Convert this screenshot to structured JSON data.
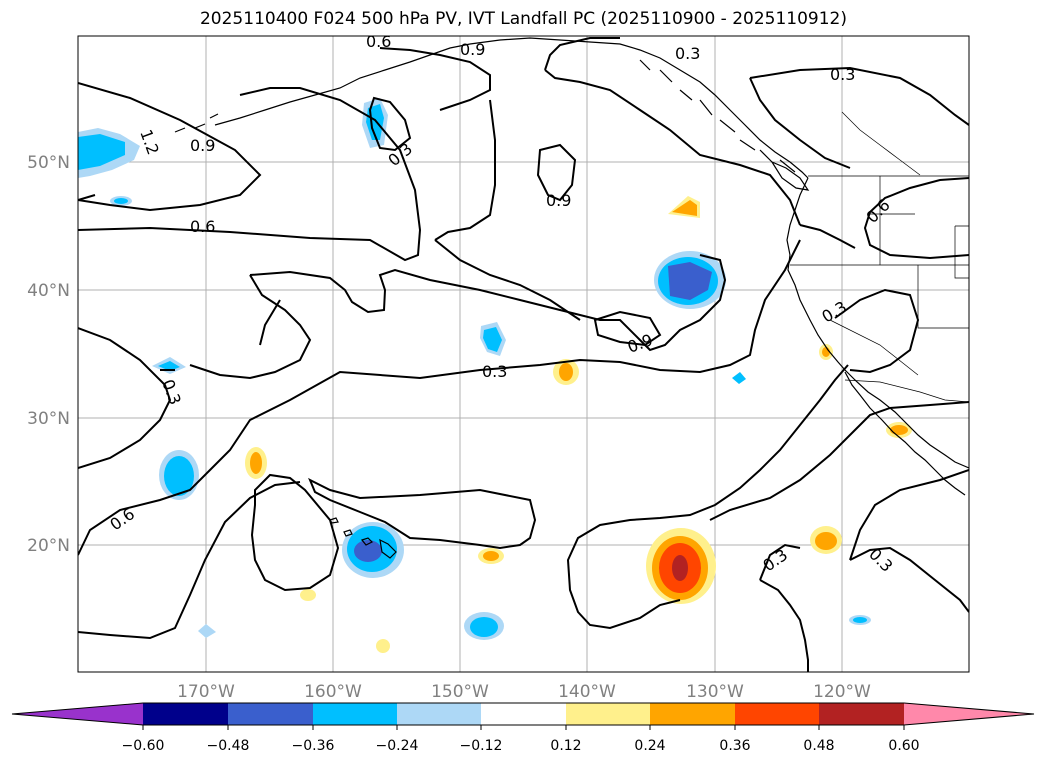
{
  "title": "2025110400 F024 500 hPa PV, IVT Landfall PC (2025110900 - 2025110912)",
  "axes": {
    "lat_labels": [
      "50°N",
      "40°N",
      "30°N",
      "20°N"
    ],
    "lon_labels": [
      "170°W",
      "160°W",
      "150°W",
      "140°W",
      "130°W",
      "120°W"
    ]
  },
  "contour_labels": [
    "0.6",
    "0.9",
    "0.3",
    "1.2",
    "0.9",
    "0.3",
    "0.9",
    "0.6",
    "0.6",
    "0.3",
    "0.9",
    "0.3",
    "0.3",
    "0.6",
    "0.3",
    "0.3",
    "0.3"
  ],
  "colorbar": {
    "ticks": [
      "−0.60",
      "−0.48",
      "−0.36",
      "−0.24",
      "−0.12",
      "0.12",
      "0.24",
      "0.36",
      "0.48",
      "0.60"
    ],
    "colors": [
      "#9932cc",
      "#00008b",
      "#3a5fcd",
      "#00bfff",
      "#add8f6",
      "#ffffff",
      "#fff08c",
      "#ffa500",
      "#ff4500",
      "#b22222",
      "#ff88aa"
    ]
  },
  "colors": {
    "gridline": "#b0b0b0",
    "axis_label": "#808080",
    "contour": "#000000"
  }
}
